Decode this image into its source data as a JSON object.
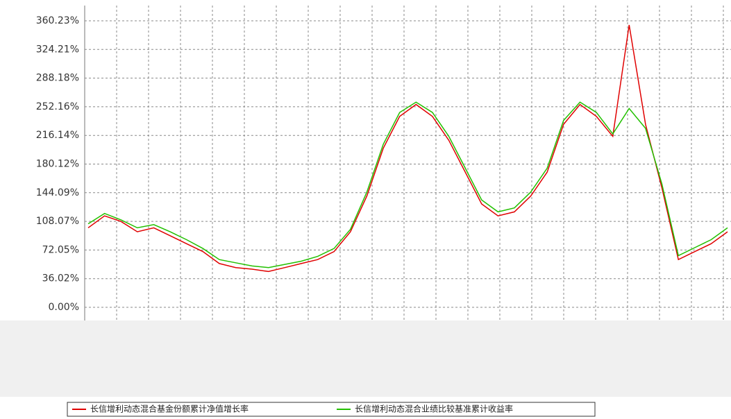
{
  "chart_data": {
    "type": "line",
    "categories": [
      null,
      null,
      null,
      null,
      null,
      null,
      null,
      null,
      null,
      null,
      null,
      null,
      null,
      null,
      null,
      null,
      null,
      null,
      null,
      null,
      null,
      null,
      null,
      null,
      null,
      null,
      null,
      null,
      null,
      null,
      null,
      null,
      null,
      null,
      null,
      null,
      null,
      null,
      null,
      null
    ],
    "series": [
      {
        "name": "长信增利动态混合基金份额累计净值增长率",
        "color": "#e00000",
        "values": [
          100,
          115,
          108,
          95,
          100,
          90,
          80,
          70,
          55,
          50,
          48,
          45,
          50,
          55,
          60,
          70,
          95,
          140,
          200,
          240,
          255,
          240,
          210,
          170,
          130,
          115,
          120,
          140,
          170,
          230,
          255,
          240,
          215,
          355,
          230,
          150,
          60,
          70,
          80,
          95
        ]
      },
      {
        "name": "长信增利动态混合业绩比较基准累计收益率",
        "color": "#22c000",
        "values": [
          105,
          118,
          110,
          100,
          104,
          95,
          85,
          74,
          60,
          56,
          52,
          50,
          54,
          58,
          64,
          74,
          98,
          145,
          205,
          245,
          258,
          245,
          215,
          175,
          135,
          120,
          125,
          145,
          175,
          235,
          258,
          245,
          218,
          250,
          225,
          155,
          65,
          75,
          85,
          100
        ]
      }
    ],
    "ylim": [
      0,
      360.23
    ],
    "yticks": [
      {
        "value": 0,
        "label": "0.00%"
      },
      {
        "value": 36.02,
        "label": "36.02%"
      },
      {
        "value": 72.05,
        "label": "72.05%"
      },
      {
        "value": 108.07,
        "label": "108.07%"
      },
      {
        "value": 144.09,
        "label": "144.09%"
      },
      {
        "value": 180.12,
        "label": "180.12%"
      },
      {
        "value": 216.14,
        "label": "216.14%"
      },
      {
        "value": 252.16,
        "label": "252.16%"
      },
      {
        "value": 288.18,
        "label": "288.18%"
      },
      {
        "value": 324.21,
        "label": "324.21%"
      },
      {
        "value": 360.23,
        "label": "360.23%"
      }
    ],
    "grid": true
  }
}
